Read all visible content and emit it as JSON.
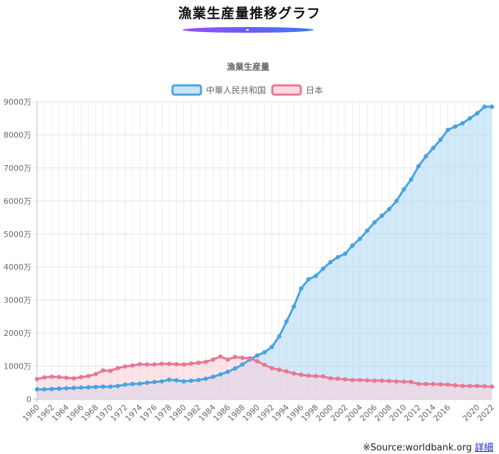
{
  "page": {
    "title": "漁業生産量推移グラフ",
    "source_prefix": "※Source:worldbank.org",
    "detail_link": "詳細"
  },
  "chart_data": {
    "type": "area",
    "title": "漁業生産量",
    "xlabel": "",
    "ylabel": "",
    "x": [
      1960,
      1961,
      1962,
      1963,
      1964,
      1965,
      1966,
      1967,
      1968,
      1969,
      1970,
      1971,
      1972,
      1973,
      1974,
      1975,
      1976,
      1977,
      1978,
      1979,
      1980,
      1981,
      1982,
      1983,
      1984,
      1985,
      1986,
      1987,
      1988,
      1989,
      1990,
      1991,
      1992,
      1993,
      1994,
      1995,
      1996,
      1997,
      1998,
      1999,
      2000,
      2001,
      2002,
      2003,
      2004,
      2005,
      2006,
      2007,
      2008,
      2009,
      2010,
      2011,
      2012,
      2013,
      2014,
      2015,
      2016,
      2017,
      2018,
      2019,
      2020,
      2021,
      2022
    ],
    "xticks": [
      "1960",
      "1962",
      "1964",
      "1966",
      "1968",
      "1970",
      "1972",
      "1974",
      "1976",
      "1978",
      "1980",
      "1982",
      "1984",
      "1986",
      "1988",
      "1990",
      "1992",
      "1994",
      "1996",
      "1998",
      "2000",
      "2002",
      "2004",
      "2006",
      "2008",
      "2010",
      "2012",
      "2014",
      "2016",
      "2020",
      "2022"
    ],
    "yticks": [
      "0",
      "1000万",
      "2000万",
      "3000万",
      "4000万",
      "5000万",
      "6000万",
      "7000万",
      "8000万",
      "9000万"
    ],
    "ylim": [
      0,
      90000000
    ],
    "grid": true,
    "legend_position": "top",
    "series": [
      {
        "name": "中華人民共和国",
        "color": "#4aa3df",
        "fill": "rgba(166,212,244,0.5)",
        "values": [
          3000000,
          3000000,
          3100000,
          3200000,
          3300000,
          3400000,
          3500000,
          3600000,
          3700000,
          3800000,
          3800000,
          4000000,
          4400000,
          4600000,
          4700000,
          5000000,
          5200000,
          5400000,
          5900000,
          5700000,
          5400000,
          5600000,
          5800000,
          6200000,
          6800000,
          7500000,
          8300000,
          9300000,
          10500000,
          12000000,
          13200000,
          14200000,
          15800000,
          19000000,
          23500000,
          28000000,
          33500000,
          36300000,
          37300000,
          39500000,
          41500000,
          43000000,
          44000000,
          46500000,
          48500000,
          51000000,
          53500000,
          55500000,
          57500000,
          60000000,
          63500000,
          66500000,
          70500000,
          73500000,
          76000000,
          78500000,
          81500000,
          82500000,
          83500000,
          85000000,
          86500000,
          88500000,
          88500000
        ]
      },
      {
        "name": "日本",
        "color": "#e87894",
        "fill": "rgba(250,205,215,0.55)",
        "values": [
          6100000,
          6600000,
          6800000,
          6700000,
          6500000,
          6300000,
          6700000,
          7000000,
          7600000,
          8700000,
          8600000,
          9400000,
          9900000,
          10200000,
          10600000,
          10500000,
          10500000,
          10700000,
          10700000,
          10600000,
          10500000,
          10800000,
          11000000,
          11300000,
          12000000,
          12900000,
          12000000,
          12800000,
          12500000,
          12400000,
          11500000,
          10400000,
          9400000,
          8900000,
          8400000,
          7800000,
          7400000,
          7100000,
          7000000,
          6900000,
          6300000,
          6200000,
          6000000,
          5800000,
          5800000,
          5700000,
          5600000,
          5600000,
          5500000,
          5400000,
          5300000,
          5200000,
          4600000,
          4600000,
          4600000,
          4500000,
          4400000,
          4200000,
          4000000,
          4000000,
          4000000,
          3900000,
          3800000
        ]
      }
    ]
  }
}
